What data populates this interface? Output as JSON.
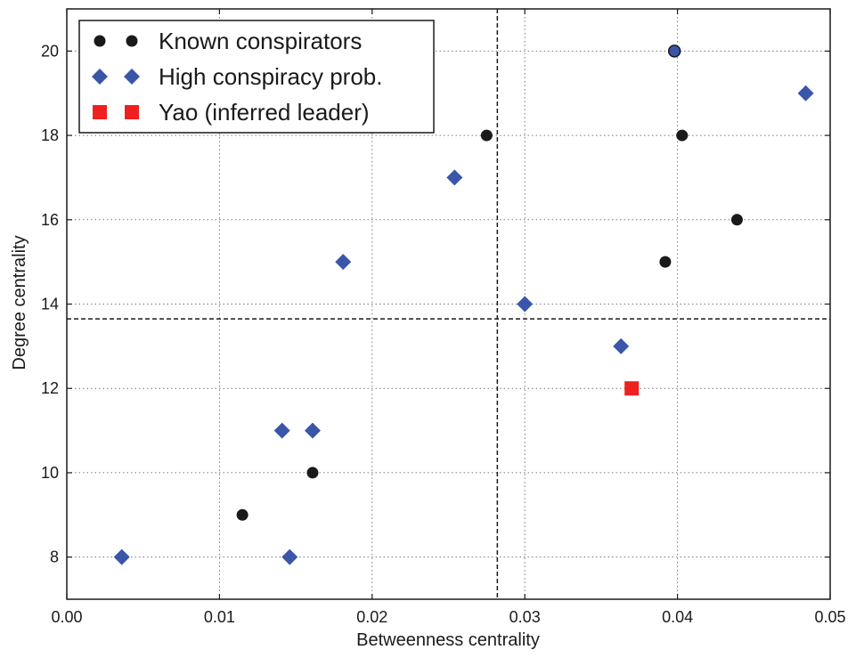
{
  "chart_data": {
    "type": "scatter",
    "xlabel": "Betweenness centrality",
    "ylabel": "Degree centrality",
    "xlim": [
      0.0,
      0.05
    ],
    "ylim": [
      7,
      21
    ],
    "xticks": [
      "0.00",
      "0.01",
      "0.02",
      "0.03",
      "0.04",
      "0.05"
    ],
    "xtick_values": [
      0.0,
      0.01,
      0.02,
      0.03,
      0.04,
      0.05
    ],
    "yticks": [
      "8",
      "10",
      "12",
      "14",
      "16",
      "18",
      "20"
    ],
    "ytick_values": [
      8,
      10,
      12,
      14,
      16,
      18,
      20
    ],
    "grid": true,
    "legend_position": "top-left",
    "reference_lines": {
      "x": 0.0282,
      "y": 13.65
    },
    "series": [
      {
        "name": "Known conspirators",
        "marker": "circle",
        "color": "#1a1a1a",
        "points": [
          {
            "x": 0.0115,
            "y": 9
          },
          {
            "x": 0.0161,
            "y": 10
          },
          {
            "x": 0.0275,
            "y": 18
          },
          {
            "x": 0.0392,
            "y": 15
          },
          {
            "x": 0.0403,
            "y": 18
          },
          {
            "x": 0.0439,
            "y": 16
          }
        ]
      },
      {
        "name": "High conspiracy prob.",
        "marker": "diamond",
        "color": "#3a56a8",
        "points": [
          {
            "x": 0.0036,
            "y": 8
          },
          {
            "x": 0.0146,
            "y": 8
          },
          {
            "x": 0.0141,
            "y": 11
          },
          {
            "x": 0.0161,
            "y": 11
          },
          {
            "x": 0.0181,
            "y": 15
          },
          {
            "x": 0.0254,
            "y": 17
          },
          {
            "x": 0.03,
            "y": 14
          },
          {
            "x": 0.0363,
            "y": 13
          },
          {
            "x": 0.0484,
            "y": 19
          }
        ]
      },
      {
        "name": "Yao (inferred leader)",
        "marker": "square",
        "color": "#ee2020",
        "points": [
          {
            "x": 0.037,
            "y": 12
          }
        ]
      },
      {
        "name": "",
        "marker": "circle-outlined",
        "color": "#3a56a8",
        "stroke": "#1a1a1a",
        "points": [
          {
            "x": 0.0398,
            "y": 20
          }
        ]
      }
    ]
  }
}
